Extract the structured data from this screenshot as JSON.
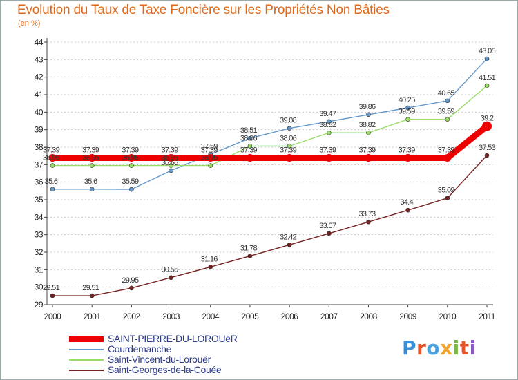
{
  "title": "Evolution du Taux de Taxe Foncière sur les Propriétés Non Bâties",
  "unit_label": "(en %)",
  "brand": {
    "text": "Proxiti",
    "colors": [
      "#3a8fd6",
      "#e8542a",
      "#4aa3df",
      "#f2a32a",
      "#7ab648",
      "#e8542a",
      "#8a5cc4"
    ]
  },
  "chart_data": {
    "type": "line",
    "title": "Evolution du Taux de Taxe Foncière sur les Propriétés Non Bâties",
    "ylabel": "(en %)",
    "xlabel": "",
    "x": [
      2000,
      2001,
      2002,
      2003,
      2004,
      2005,
      2006,
      2007,
      2008,
      2009,
      2010,
      2011
    ],
    "ylim": [
      29,
      44
    ],
    "yticks": [
      29,
      30,
      31,
      32,
      33,
      34,
      35,
      36,
      37,
      38,
      39,
      40,
      41,
      42,
      43,
      44
    ],
    "grid": "horizontal dashed",
    "legend": "bottom-left",
    "series": [
      {
        "name": "SAINT-PIERRE-DU-LOROUëR",
        "color": "#ee0000",
        "emphasis": "bold",
        "values": [
          37.39,
          37.39,
          37.39,
          37.39,
          37.39,
          37.39,
          37.39,
          37.39,
          37.39,
          37.39,
          37.39,
          39.2
        ],
        "labels": [
          "37.39",
          "37.39",
          "37.39",
          "37.39",
          "37.39",
          "37.39",
          "37.39",
          "37.39",
          "37.39",
          "37.39",
          "37.39",
          "39.2"
        ]
      },
      {
        "name": "Courdemanche",
        "color": "#6699cc",
        "values": [
          35.6,
          35.6,
          35.59,
          36.66,
          37.59,
          38.51,
          39.08,
          39.47,
          39.86,
          40.25,
          40.65,
          43.05
        ],
        "labels": [
          "35.6",
          "35.6",
          "35.59",
          "36.66",
          "37.59",
          "38.51",
          "39.08",
          "39.47",
          "39.86",
          "40.25",
          "40.65",
          "43.05"
        ]
      },
      {
        "name": "Saint-Vincent-du-Lorouër",
        "color": "#99dd66",
        "values": [
          36.95,
          36.95,
          36.95,
          36.95,
          36.95,
          38.06,
          38.06,
          38.82,
          38.82,
          39.59,
          39.59,
          41.51
        ],
        "labels": [
          "36.95",
          "36.95",
          "36.95",
          "36.95",
          "36.95",
          "38.06",
          "38.06",
          "38.82",
          "38.82",
          "39.59",
          "39.59",
          "41.51"
        ]
      },
      {
        "name": "Saint-Georges-de-la-Couée",
        "color": "#772222",
        "values": [
          29.51,
          29.51,
          29.95,
          30.55,
          31.16,
          31.78,
          32.42,
          33.07,
          33.73,
          34.4,
          35.09,
          37.53
        ],
        "labels": [
          "29.51",
          "29.51",
          "29.95",
          "30.55",
          "31.16",
          "31.78",
          "32.42",
          "33.07",
          "33.73",
          "34.4",
          "35.09",
          "37.53"
        ]
      }
    ]
  }
}
